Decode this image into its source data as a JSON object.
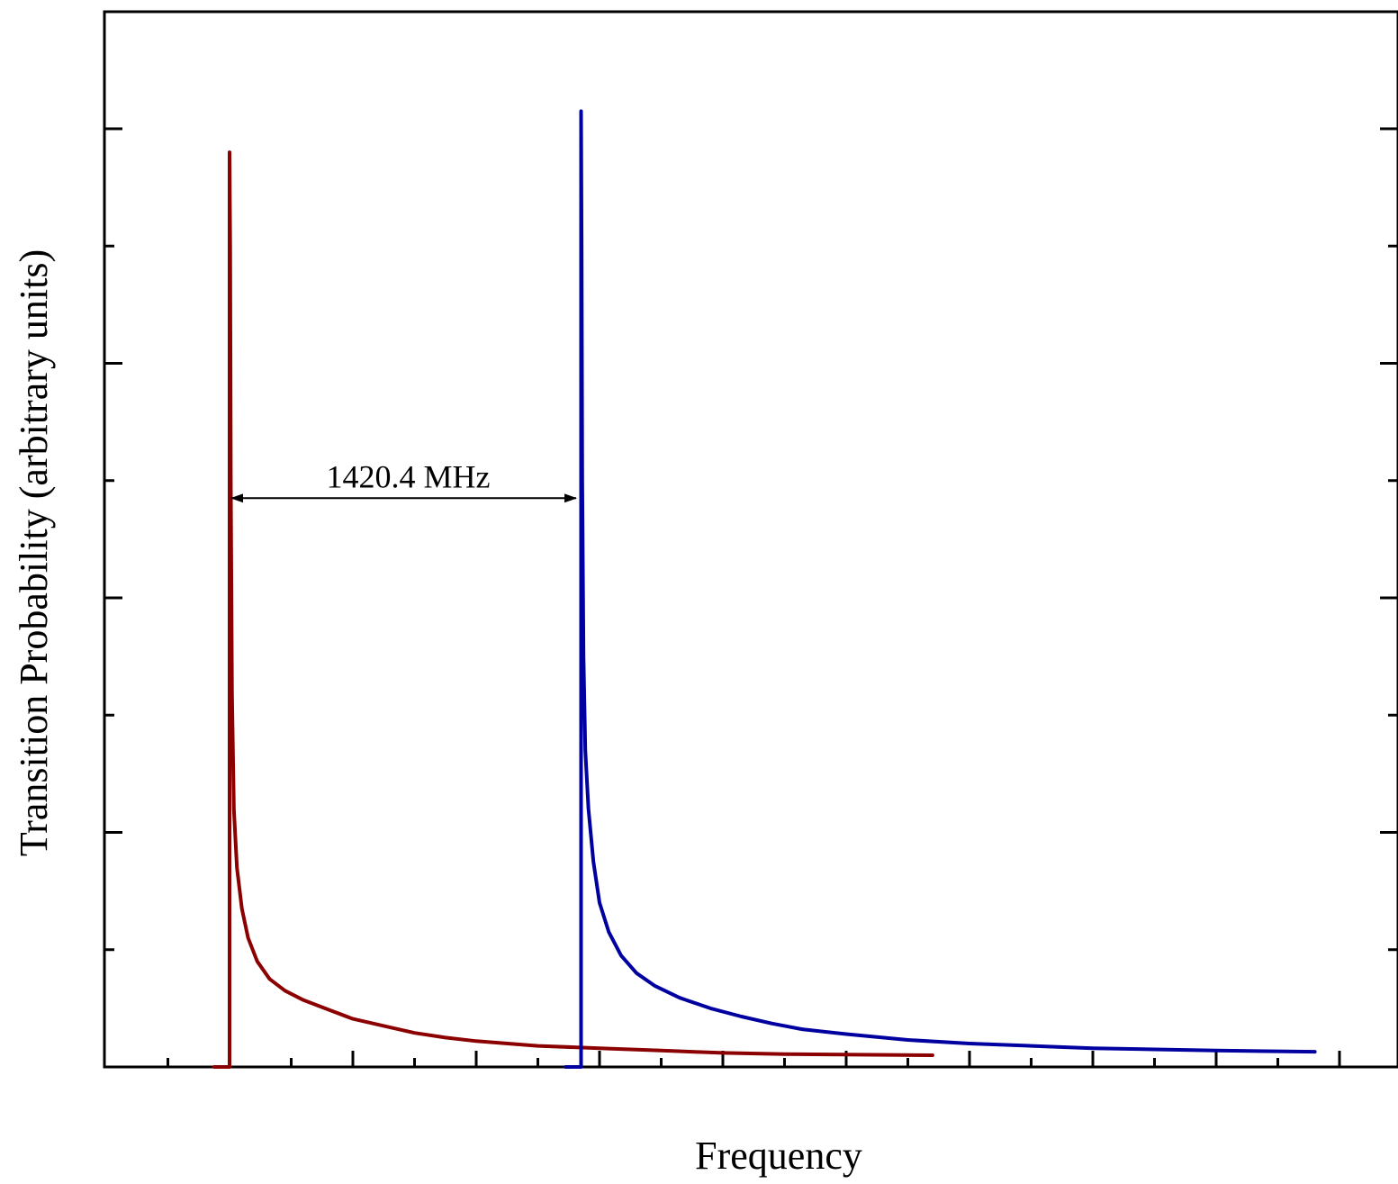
{
  "chart_data": {
    "type": "line",
    "title": "",
    "xlabel": "Frequency",
    "ylabel": "Transition Probability (arbitrary units)",
    "xlim": [
      -2.0,
      18.0
    ],
    "ylim": [
      0,
      9.0
    ],
    "x_ticks_shown": false,
    "y_ticks_shown": false,
    "grid": false,
    "legend": "none",
    "series": [
      {
        "color": "#8b0000",
        "onset_x": 0.0,
        "peak_y": 7.8,
        "points": [
          [
            -0.25,
            0.0
          ],
          [
            0.0,
            0.0
          ],
          [
            0.0,
            7.8
          ],
          [
            0.01,
            7.0
          ],
          [
            0.02,
            5.0
          ],
          [
            0.04,
            3.2
          ],
          [
            0.07,
            2.2
          ],
          [
            0.12,
            1.7
          ],
          [
            0.2,
            1.35
          ],
          [
            0.3,
            1.1
          ],
          [
            0.45,
            0.9
          ],
          [
            0.65,
            0.75
          ],
          [
            0.9,
            0.65
          ],
          [
            1.2,
            0.57
          ],
          [
            1.6,
            0.49
          ],
          [
            2.0,
            0.41
          ],
          [
            2.5,
            0.35
          ],
          [
            3.0,
            0.29
          ],
          [
            3.5,
            0.25
          ],
          [
            4.0,
            0.22
          ],
          [
            5.0,
            0.18
          ],
          [
            6.0,
            0.16
          ],
          [
            7.0,
            0.14
          ],
          [
            8.0,
            0.12
          ],
          [
            9.0,
            0.11
          ],
          [
            11.4,
            0.1
          ]
        ]
      },
      {
        "color": "#0000a0",
        "onset_x": 5.7,
        "peak_y": 8.15,
        "points": [
          [
            5.45,
            0.0
          ],
          [
            5.7,
            0.0
          ],
          [
            5.7,
            8.15
          ],
          [
            5.71,
            7.0
          ],
          [
            5.72,
            5.0
          ],
          [
            5.74,
            3.5
          ],
          [
            5.77,
            2.7
          ],
          [
            5.82,
            2.2
          ],
          [
            5.9,
            1.75
          ],
          [
            6.0,
            1.4
          ],
          [
            6.15,
            1.15
          ],
          [
            6.35,
            0.95
          ],
          [
            6.6,
            0.8
          ],
          [
            6.9,
            0.69
          ],
          [
            7.3,
            0.59
          ],
          [
            7.8,
            0.5
          ],
          [
            8.3,
            0.43
          ],
          [
            8.8,
            0.37
          ],
          [
            9.3,
            0.32
          ],
          [
            10.0,
            0.28
          ],
          [
            11.0,
            0.23
          ],
          [
            12.0,
            0.2
          ],
          [
            13.0,
            0.18
          ],
          [
            14.0,
            0.16
          ],
          [
            15.0,
            0.15
          ],
          [
            16.0,
            0.14
          ],
          [
            17.6,
            0.13
          ]
        ]
      }
    ],
    "annotations": [
      {
        "text": "1420.4 MHz",
        "x_from": 0.0,
        "x_to": 5.65,
        "y": 4.85
      }
    ]
  }
}
